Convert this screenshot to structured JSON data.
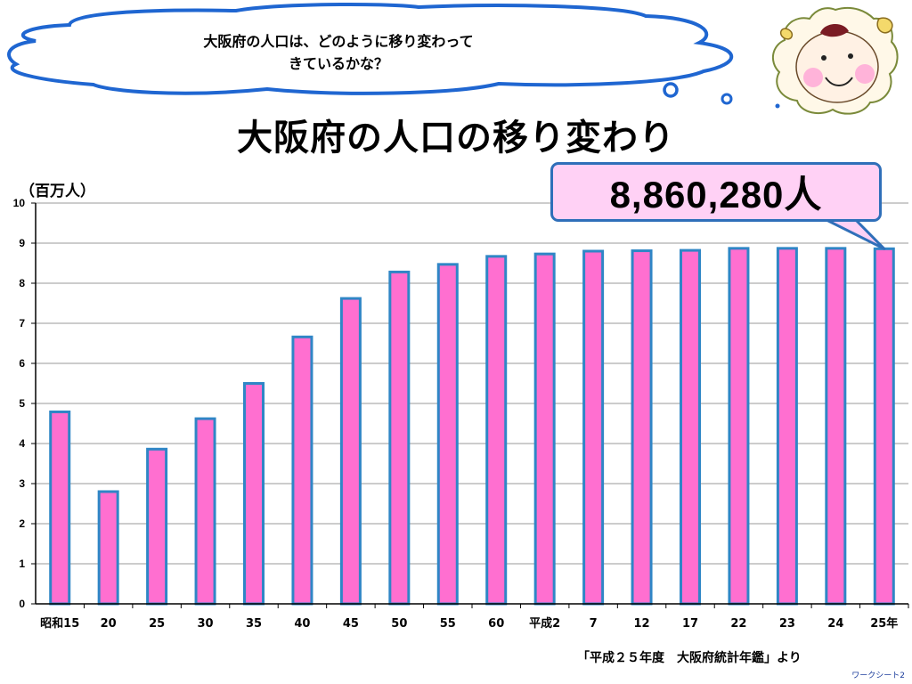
{
  "bubble": {
    "line1": "大阪府の人口は、どのように移り変わって",
    "line2": "きているかな？"
  },
  "title": "大阪府の人口の移り変わり",
  "unit_label": "（百万人）",
  "callout": {
    "text": "8,860,280人"
  },
  "source": "「平成２５年度　大阪府統計年鑑」より",
  "sheet_label": "ワークシート2",
  "colors": {
    "bar_fill": "#ff6fd0",
    "bar_stroke": "#2f86c6",
    "callout_fill": "#ffd1f5",
    "callout_border": "#2f6fb9",
    "cloud_stroke": "#1f66d1"
  },
  "icons": {
    "avatar": "child-face-icon"
  },
  "chart_data": {
    "type": "bar",
    "title": "大阪府の人口の移り変わり",
    "ylabel": "（百万人）",
    "xlabel": "",
    "categories": [
      "昭和15",
      "20",
      "25",
      "30",
      "35",
      "40",
      "45",
      "50",
      "55",
      "60",
      "平成2",
      "7",
      "12",
      "17",
      "22",
      "23",
      "24",
      "25年"
    ],
    "values": [
      4.79,
      2.8,
      3.86,
      4.62,
      5.5,
      6.66,
      7.62,
      8.28,
      8.47,
      8.67,
      8.73,
      8.8,
      8.81,
      8.82,
      8.87,
      8.87,
      8.87,
      8.86
    ],
    "ylim": [
      0,
      10
    ],
    "yticks": [
      0,
      1,
      2,
      3,
      4,
      5,
      6,
      7,
      8,
      9,
      10
    ],
    "grid": true,
    "legend": "none"
  }
}
